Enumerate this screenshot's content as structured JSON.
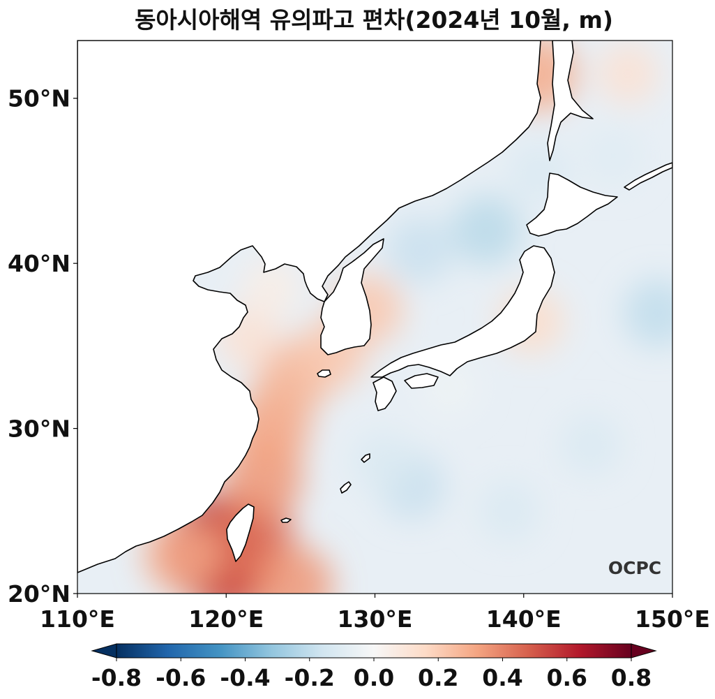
{
  "chart_data": {
    "type": "heatmap",
    "title": "동아시아해역 유의파고 편차(2024년 10월, m)",
    "xlabel": "",
    "ylabel": "",
    "xlim": [
      110,
      150
    ],
    "ylim": [
      20,
      53.5
    ],
    "x_ticks": [
      110,
      120,
      130,
      140,
      150
    ],
    "x_tick_labels": [
      "110°E",
      "120°E",
      "130°E",
      "140°E",
      "150°E"
    ],
    "y_ticks": [
      20,
      30,
      40,
      50
    ],
    "y_tick_labels": [
      "20°N",
      "30°N",
      "40°N",
      "50°N"
    ],
    "colorbar": {
      "colormap": "RdBu_r",
      "range": [
        -0.8,
        0.8
      ],
      "extend": "both",
      "orientation": "horizontal",
      "ticks": [
        -0.8,
        -0.6,
        -0.4,
        -0.2,
        0.0,
        0.2,
        0.4,
        0.6,
        0.8
      ],
      "tick_labels": [
        "-0.8",
        "-0.6",
        "-0.4",
        "-0.2",
        "0.0",
        "0.2",
        "0.4",
        "0.6",
        "0.8"
      ],
      "colors": [
        "#053061",
        "#2166ac",
        "#4393c3",
        "#92c5de",
        "#d1e5f0",
        "#f7f7f7",
        "#fddbc7",
        "#f4a582",
        "#d6604d",
        "#b2182b",
        "#67001f"
      ]
    },
    "anomaly_field_m": [
      {
        "lon": 119.5,
        "lat": 22.2,
        "value": 0.65
      },
      {
        "lon": 119.2,
        "lat": 23.0,
        "value": 0.6
      },
      {
        "lon": 120.6,
        "lat": 21.5,
        "value": 0.5
      },
      {
        "lon": 121.6,
        "lat": 23.5,
        "value": 0.45
      },
      {
        "lon": 124.5,
        "lat": 20.5,
        "value": 0.35
      },
      {
        "lon": 117.0,
        "lat": 22.3,
        "value": 0.3
      },
      {
        "lon": 122.5,
        "lat": 27.0,
        "value": 0.35
      },
      {
        "lon": 123.0,
        "lat": 30.0,
        "value": 0.32
      },
      {
        "lon": 124.5,
        "lat": 33.0,
        "value": 0.28
      },
      {
        "lon": 127.0,
        "lat": 34.5,
        "value": 0.22
      },
      {
        "lon": 129.5,
        "lat": 37.2,
        "value": 0.22
      },
      {
        "lon": 121.5,
        "lat": 35.5,
        "value": 0.12
      },
      {
        "lon": 123.0,
        "lat": 38.5,
        "value": 0.06
      },
      {
        "lon": 140.5,
        "lat": 36.5,
        "value": 0.15
      },
      {
        "lon": 141.0,
        "lat": 51.5,
        "value": 0.3
      },
      {
        "lon": 147.0,
        "lat": 51.5,
        "value": 0.12
      },
      {
        "lon": 137.5,
        "lat": 42.0,
        "value": -0.22
      },
      {
        "lon": 133.0,
        "lat": 40.8,
        "value": -0.18
      },
      {
        "lon": 141.0,
        "lat": 45.5,
        "value": -0.12
      },
      {
        "lon": 132.5,
        "lat": 26.5,
        "value": -0.18
      },
      {
        "lon": 130.5,
        "lat": 28.0,
        "value": -0.12
      },
      {
        "lon": 139.0,
        "lat": 25.0,
        "value": -0.12
      },
      {
        "lon": 144.5,
        "lat": 29.0,
        "value": -0.12
      },
      {
        "lon": 149.0,
        "lat": 37.0,
        "value": -0.2
      },
      {
        "lon": 146.0,
        "lat": 46.5,
        "value": -0.1
      },
      {
        "lon": 135.0,
        "lat": 32.5,
        "value": -0.04
      }
    ],
    "land_regions": [
      "China",
      "Korean Peninsula",
      "Japan",
      "Taiwan",
      "Russian Far East",
      "Sakhalin"
    ]
  },
  "logo": {
    "text": "OCPC"
  }
}
